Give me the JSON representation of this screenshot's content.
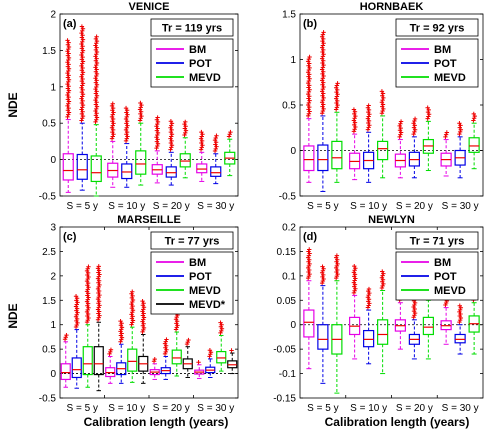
{
  "figure": {
    "xlabel": "Calibration length (years)",
    "ylabel": "NDE"
  },
  "colors": {
    "BM": "#e600e6",
    "POT": "#0000e6",
    "MEVD": "#00dd00",
    "MEVD*": "#000000",
    "outlier": "#ee0000",
    "median": "#ee0000"
  },
  "chart_data": [
    {
      "type": "box",
      "panel_label": "(a)",
      "title": "VENICE",
      "tr_label": "Tr = 119 yrs",
      "categories": [
        "S = 5 y",
        "S = 10 y",
        "S = 20 y",
        "S = 30 y"
      ],
      "ylim": [
        -0.5,
        2
      ],
      "yticks": [
        -0.5,
        0,
        0.5,
        1,
        1.5,
        2
      ],
      "ytick_labels": [
        "-0.5",
        "0",
        "0.5",
        "1",
        "1.5",
        "2"
      ],
      "show_xticks": false,
      "legend": [
        "BM",
        "POT",
        "MEVD"
      ],
      "series": [
        {
          "name": "BM",
          "boxes": [
            {
              "wlo": -0.45,
              "q1": -0.28,
              "med": -0.15,
              "q3": 0.08,
              "whi": 0.55,
              "omax": 1.65
            },
            {
              "wlo": -0.38,
              "q1": -0.24,
              "med": -0.15,
              "q3": -0.05,
              "whi": 0.25,
              "omax": 0.78
            },
            {
              "wlo": -0.32,
              "q1": -0.2,
              "med": -0.14,
              "q3": -0.07,
              "whi": 0.12,
              "omax": 0.58
            },
            {
              "wlo": -0.3,
              "q1": -0.18,
              "med": -0.13,
              "q3": -0.06,
              "whi": 0.1,
              "omax": 0.4
            }
          ]
        },
        {
          "name": "POT",
          "boxes": [
            {
              "wlo": -0.42,
              "q1": -0.27,
              "med": -0.14,
              "q3": 0.07,
              "whi": 0.5,
              "omax": 1.85
            },
            {
              "wlo": -0.38,
              "q1": -0.26,
              "med": -0.17,
              "q3": -0.06,
              "whi": 0.22,
              "omax": 0.72
            },
            {
              "wlo": -0.35,
              "q1": -0.24,
              "med": -0.18,
              "q3": -0.1,
              "whi": 0.1,
              "omax": 0.55
            },
            {
              "wlo": -0.33,
              "q1": -0.23,
              "med": -0.18,
              "q3": -0.1,
              "whi": 0.08,
              "omax": 0.35
            }
          ]
        },
        {
          "name": "MEVD",
          "boxes": [
            {
              "wlo": -0.5,
              "q1": -0.3,
              "med": -0.18,
              "q3": 0.05,
              "whi": 0.48,
              "omax": 1.7
            },
            {
              "wlo": -0.35,
              "q1": -0.2,
              "med": -0.06,
              "q3": 0.12,
              "whi": 0.5,
              "omax": 0.8
            },
            {
              "wlo": -0.25,
              "q1": -0.1,
              "med": -0.02,
              "q3": 0.08,
              "whi": 0.3,
              "omax": 0.52
            },
            {
              "wlo": -0.22,
              "q1": -0.06,
              "med": 0.02,
              "q3": 0.1,
              "whi": 0.28,
              "omax": 0.38
            }
          ]
        }
      ]
    },
    {
      "type": "box",
      "panel_label": "(b)",
      "title": "HORNBAEK",
      "tr_label": "Tr = 92 yrs",
      "categories": [
        "S = 5 y",
        "S = 10 y",
        "S = 20 y",
        "S = 30 y"
      ],
      "ylim": [
        -0.5,
        1.5
      ],
      "yticks": [
        -0.5,
        0,
        0.5,
        1,
        1.5
      ],
      "ytick_labels": [
        "-0.5",
        "0",
        "0.5",
        "1",
        "1.5"
      ],
      "show_xticks": false,
      "legend": [
        "BM",
        "POT",
        "MEVD"
      ],
      "series": [
        {
          "name": "BM",
          "boxes": [
            {
              "wlo": -0.35,
              "q1": -0.22,
              "med": -0.1,
              "q3": 0.05,
              "whi": 0.35,
              "omax": 1.05
            },
            {
              "wlo": -0.32,
              "q1": -0.2,
              "med": -0.12,
              "q3": -0.03,
              "whi": 0.18,
              "omax": 0.45
            },
            {
              "wlo": -0.3,
              "q1": -0.18,
              "med": -0.11,
              "q3": -0.04,
              "whi": 0.12,
              "omax": 0.32
            },
            {
              "wlo": -0.28,
              "q1": -0.17,
              "med": -0.1,
              "q3": -0.03,
              "whi": 0.12,
              "omax": 0.22
            }
          ]
        },
        {
          "name": "POT",
          "boxes": [
            {
              "wlo": -0.45,
              "q1": -0.22,
              "med": -0.1,
              "q3": 0.06,
              "whi": 0.38,
              "omax": 1.3
            },
            {
              "wlo": -0.35,
              "q1": -0.2,
              "med": -0.11,
              "q3": -0.02,
              "whi": 0.2,
              "omax": 0.5
            },
            {
              "wlo": -0.3,
              "q1": -0.17,
              "med": -0.1,
              "q3": -0.02,
              "whi": 0.15,
              "omax": 0.35
            },
            {
              "wlo": -0.3,
              "q1": -0.16,
              "med": -0.08,
              "q3": 0.0,
              "whi": 0.15,
              "omax": 0.3
            }
          ]
        },
        {
          "name": "MEVD",
          "boxes": [
            {
              "wlo": -0.35,
              "q1": -0.2,
              "med": -0.08,
              "q3": 0.1,
              "whi": 0.42,
              "omax": 0.75
            },
            {
              "wlo": -0.3,
              "q1": -0.1,
              "med": 0.02,
              "q3": 0.1,
              "whi": 0.38,
              "omax": 0.65
            },
            {
              "wlo": -0.22,
              "q1": -0.03,
              "med": 0.05,
              "q3": 0.12,
              "whi": 0.32,
              "omax": 0.48
            },
            {
              "wlo": -0.2,
              "q1": -0.02,
              "med": 0.05,
              "q3": 0.14,
              "whi": 0.3,
              "omax": 0.42
            }
          ]
        }
      ]
    },
    {
      "type": "box",
      "panel_label": "(c)",
      "title": "MARSEILLE",
      "tr_label": "Tr = 77 yrs",
      "categories": [
        "S = 5 y",
        "S = 10 y",
        "S = 20 y",
        "S = 30 y"
      ],
      "ylim": [
        -0.5,
        3
      ],
      "yticks": [
        -0.5,
        0,
        0.5,
        1,
        1.5,
        2,
        2.5,
        3
      ],
      "ytick_labels": [
        "-0.5",
        "0",
        "0.5",
        "1",
        "1.5",
        "2",
        "2.5",
        "3"
      ],
      "show_xticks": true,
      "legend": [
        "BM",
        "POT",
        "MEVD",
        "MEVD*"
      ],
      "series": [
        {
          "name": "BM",
          "boxes": [
            {
              "wlo": -0.28,
              "q1": -0.12,
              "med": 0.02,
              "q3": 0.2,
              "whi": 0.65,
              "omax": 0.8
            },
            {
              "wlo": -0.2,
              "q1": -0.06,
              "med": 0.02,
              "q3": 0.12,
              "whi": 0.35,
              "omax": 0.5
            },
            {
              "wlo": -0.12,
              "q1": -0.02,
              "med": 0.03,
              "q3": 0.08,
              "whi": 0.2,
              "omax": 0.3
            },
            {
              "wlo": -0.1,
              "q1": -0.01,
              "med": 0.03,
              "q3": 0.07,
              "whi": 0.18,
              "omax": 0.25
            }
          ]
        },
        {
          "name": "POT",
          "boxes": [
            {
              "wlo": -0.3,
              "q1": -0.08,
              "med": 0.08,
              "q3": 0.32,
              "whi": 0.9,
              "omax": 1.6
            },
            {
              "wlo": -0.2,
              "q1": -0.02,
              "med": 0.1,
              "q3": 0.22,
              "whi": 0.6,
              "omax": 1.1
            },
            {
              "wlo": -0.12,
              "q1": 0.0,
              "med": 0.06,
              "q3": 0.12,
              "whi": 0.35,
              "omax": 0.7
            },
            {
              "wlo": -0.08,
              "q1": 0.02,
              "med": 0.07,
              "q3": 0.13,
              "whi": 0.3,
              "omax": 0.5
            }
          ]
        },
        {
          "name": "MEVD",
          "boxes": [
            {
              "wlo": -0.28,
              "q1": -0.02,
              "med": 0.2,
              "q3": 0.55,
              "whi": 1.0,
              "omax": 2.2
            },
            {
              "wlo": -0.18,
              "q1": 0.05,
              "med": 0.25,
              "q3": 0.5,
              "whi": 0.95,
              "omax": 1.7
            },
            {
              "wlo": -0.05,
              "q1": 0.2,
              "med": 0.32,
              "q3": 0.48,
              "whi": 0.85,
              "omax": 1.25
            },
            {
              "wlo": 0.05,
              "q1": 0.22,
              "med": 0.32,
              "q3": 0.45,
              "whi": 0.78,
              "omax": 1.05
            }
          ]
        },
        {
          "name": "MEVD*",
          "boxes": [
            {
              "wlo": -0.35,
              "q1": -0.02,
              "med": 0.2,
              "q3": 0.55,
              "whi": 1.05,
              "omax": 2.2
            },
            {
              "wlo": -0.2,
              "q1": 0.05,
              "med": 0.2,
              "q3": 0.35,
              "whi": 0.8,
              "omax": 1.5
            },
            {
              "wlo": -0.08,
              "q1": 0.1,
              "med": 0.2,
              "q3": 0.3,
              "whi": 0.55,
              "omax": 0.7
            },
            {
              "wlo": 0.0,
              "q1": 0.12,
              "med": 0.18,
              "q3": 0.26,
              "whi": 0.42,
              "omax": 0.48
            }
          ]
        }
      ]
    },
    {
      "type": "box",
      "panel_label": "(d)",
      "title": "NEWLYN",
      "tr_label": "Tr = 71 yrs",
      "categories": [
        "S = 5 y",
        "S = 10 y",
        "S = 20 y",
        "S = 30 y"
      ],
      "ylim": [
        -0.15,
        0.2
      ],
      "yticks": [
        -0.15,
        -0.1,
        -0.05,
        0,
        0.05,
        0.1,
        0.15,
        0.2
      ],
      "ytick_labels": [
        "-0.15",
        "-0.1",
        "-0.05",
        "0",
        "0.05",
        "0.1",
        "0.15",
        "0.2"
      ],
      "show_xticks": true,
      "legend": [
        "BM",
        "POT",
        "MEVD"
      ],
      "series": [
        {
          "name": "BM",
          "boxes": [
            {
              "wlo": -0.09,
              "q1": -0.025,
              "med": 0.005,
              "q3": 0.03,
              "whi": 0.09,
              "omax": 0.155
            },
            {
              "wlo": -0.07,
              "q1": -0.02,
              "med": -0.003,
              "q3": 0.015,
              "whi": 0.06,
              "omax": 0.12
            },
            {
              "wlo": -0.05,
              "q1": -0.013,
              "med": -0.002,
              "q3": 0.01,
              "whi": 0.045,
              "omax": 0.09
            },
            {
              "wlo": -0.04,
              "q1": -0.01,
              "med": -0.002,
              "q3": 0.008,
              "whi": 0.035,
              "omax": 0.06
            }
          ]
        },
        {
          "name": "POT",
          "boxes": [
            {
              "wlo": -0.12,
              "q1": -0.05,
              "med": -0.03,
              "q3": 0.0,
              "whi": 0.08,
              "omax": 0.12
            },
            {
              "wlo": -0.08,
              "q1": -0.045,
              "med": -0.03,
              "q3": -0.012,
              "whi": 0.03,
              "omax": 0.075
            },
            {
              "wlo": -0.07,
              "q1": -0.04,
              "med": -0.03,
              "q3": -0.02,
              "whi": 0.01,
              "omax": 0.05
            },
            {
              "wlo": -0.06,
              "q1": -0.037,
              "med": -0.03,
              "q3": -0.02,
              "whi": 0.0,
              "omax": 0.04
            }
          ]
        },
        {
          "name": "MEVD",
          "boxes": [
            {
              "wlo": -0.14,
              "q1": -0.06,
              "med": -0.03,
              "q3": 0.0,
              "whi": 0.09,
              "omax": 0.145
            },
            {
              "wlo": -0.1,
              "q1": -0.04,
              "med": -0.02,
              "q3": 0.01,
              "whi": 0.07,
              "omax": 0.11
            },
            {
              "wlo": -0.07,
              "q1": -0.02,
              "med": -0.005,
              "q3": 0.015,
              "whi": 0.05,
              "omax": 0.08
            },
            {
              "wlo": -0.06,
              "q1": -0.015,
              "med": 0.002,
              "q3": 0.018,
              "whi": 0.045,
              "omax": 0.055
            }
          ]
        }
      ]
    }
  ]
}
